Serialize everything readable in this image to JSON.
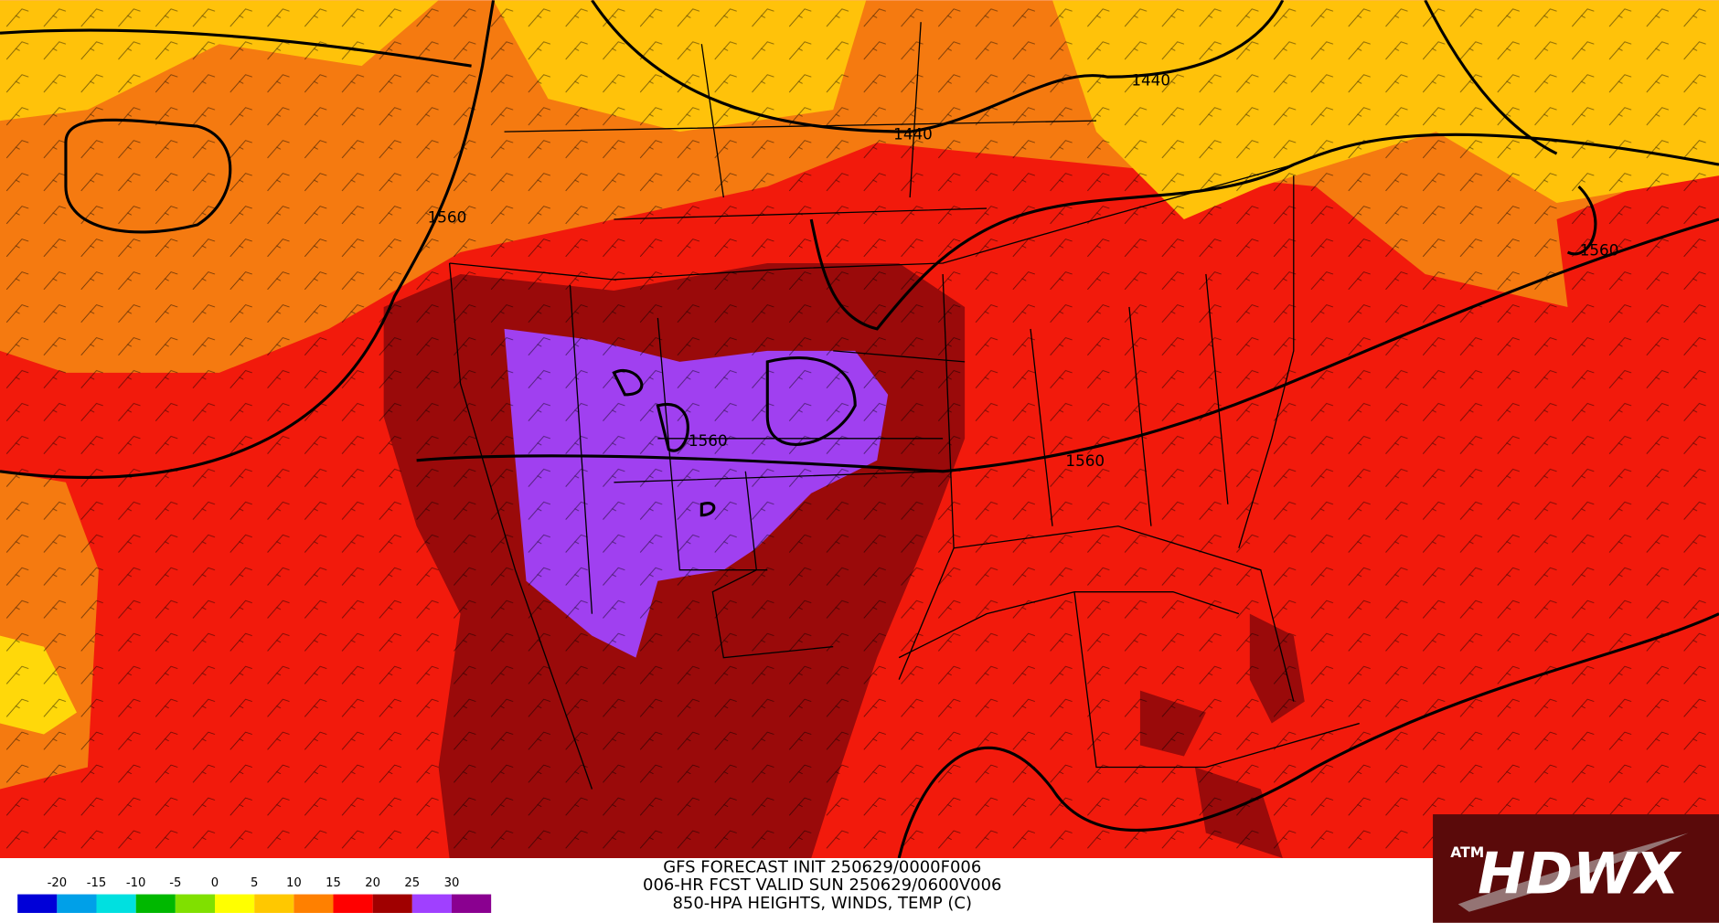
{
  "header": {
    "lines": [
      "GFS FORECAST INIT 250629/0000F006",
      "006-HR FCST VALID SUN 250629/0600V006",
      "850-HPA HEIGHTS, WINDS, TEMP (C)"
    ]
  },
  "legend": {
    "labels": [
      -20,
      -15,
      -10,
      -5,
      0,
      5,
      10,
      15,
      20,
      25,
      30
    ]
  },
  "contour_labels": [
    "1440",
    "1440",
    "1560",
    "1560",
    "1560",
    "1560"
  ],
  "logo": {
    "text": "HDWX",
    "emblem": "ATM"
  }
}
